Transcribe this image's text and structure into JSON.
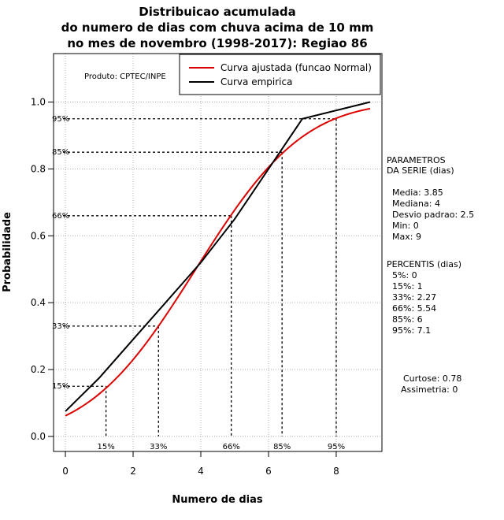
{
  "chart_data": {
    "type": "line",
    "title": [
      "Distribuicao acumulada",
      "do numero de dias com chuva acima de 10 mm",
      "no mes de novembro (1998-2017): Regiao 86"
    ],
    "xlabel": "Numero de dias",
    "ylabel": "Probabilidade",
    "xlim": [
      -0.35,
      9.35
    ],
    "ylim": [
      -0.045,
      1.145
    ],
    "x_ticks": [
      0,
      2,
      4,
      6,
      8
    ],
    "y_ticks": [
      0.0,
      0.2,
      0.4,
      0.6,
      0.8,
      1.0
    ],
    "y_tick_labels": [
      "0.0",
      "0.2",
      "0.4",
      "0.6",
      "0.8",
      "1.0"
    ],
    "grid": true,
    "legend_position": "top-right",
    "producer": "Produto: CPTEC/INPE",
    "series": [
      {
        "name": "Curva ajustada (funcao Normal)",
        "color": "#dd0000",
        "kind": "normal_cdf",
        "mean": 3.85,
        "sd": 2.5,
        "x_range": [
          0,
          9
        ]
      },
      {
        "name": "Curva empirica",
        "color": "#000000",
        "x": [
          0,
          1,
          2,
          3,
          4,
          5,
          6,
          7,
          8,
          9
        ],
        "y": [
          0.075,
          0.175,
          0.29,
          0.405,
          0.52,
          0.65,
          0.8,
          0.95,
          0.975,
          1.0
        ]
      }
    ],
    "percentile_markers": [
      {
        "label": "15%",
        "prob": 0.15,
        "x": 1.2
      },
      {
        "label": "33%",
        "prob": 0.33,
        "x": 2.75
      },
      {
        "label": "66%",
        "prob": 0.66,
        "x": 4.9
      },
      {
        "label": "85%",
        "prob": 0.85,
        "x": 6.4
      },
      {
        "label": "95%",
        "prob": 0.95,
        "x": 8.0
      }
    ],
    "parametros": {
      "header": [
        "PARAMETROS",
        "DA SERIE (dias)"
      ],
      "lines": [
        "Media: 3.85",
        "Mediana: 4",
        "Desvio padrao: 2.5",
        "Min: 0",
        "Max: 9"
      ]
    },
    "percentis": {
      "header": "PERCENTIS (dias)",
      "lines": [
        "5%: 0",
        "15%: 1",
        "33%: 2.27",
        "66%: 5.54",
        "85%: 6",
        "95%: 7.1"
      ]
    },
    "curtose": "Curtose: 0.78",
    "assimetria": "Assimetria: 0"
  }
}
